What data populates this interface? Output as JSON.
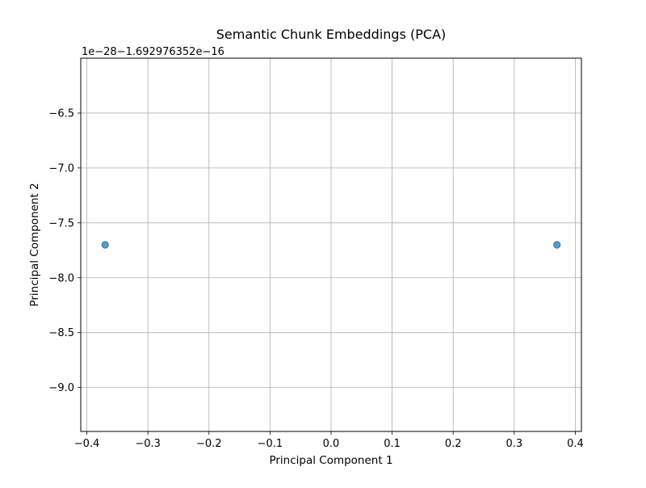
{
  "chart_data": {
    "type": "scatter",
    "title": "Semantic Chunk Embeddings (PCA)",
    "xlabel": "Principal Component 1",
    "ylabel": "Principal Component 2",
    "offset_label": "1e−28−1.692976352e−16",
    "xlim": [
      -0.41,
      0.41
    ],
    "ylim": [
      -9.4,
      -6.0
    ],
    "xticks": [
      -0.4,
      -0.3,
      -0.2,
      -0.1,
      0.0,
      0.1,
      0.2,
      0.3,
      0.4
    ],
    "xtick_labels": [
      "−0.4",
      "−0.3",
      "−0.2",
      "−0.1",
      "0.0",
      "0.1",
      "0.2",
      "0.3",
      "0.4"
    ],
    "yticks": [
      -6.5,
      -7.0,
      -7.5,
      -8.0,
      -8.5,
      -9.0
    ],
    "ytick_labels": [
      "−6.5",
      "−7.0",
      "−7.5",
      "−8.0",
      "−8.5",
      "−9.0"
    ],
    "grid": true,
    "points": [
      {
        "x": -0.37,
        "y": -7.7
      },
      {
        "x": 0.37,
        "y": -7.7
      }
    ],
    "marker_color": "#1f77b4"
  }
}
